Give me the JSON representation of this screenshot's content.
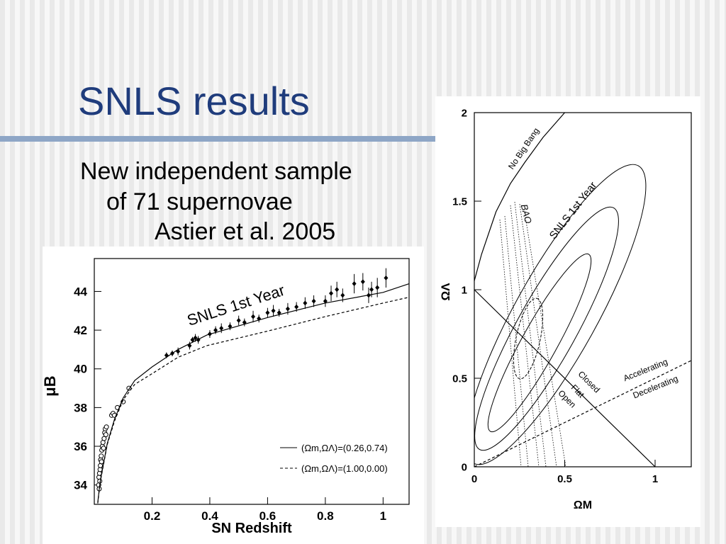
{
  "slide": {
    "title": "SNLS results",
    "body": [
      "New independent sample",
      "of 71 supernovae",
      "Astier et al. 2005"
    ]
  },
  "chart_data": [
    {
      "type": "scatter",
      "x_label": "SN Redshift",
      "y_label": "μB",
      "xlim": [
        0,
        1.09
      ],
      "ylim": [
        33,
        45.7
      ],
      "xticks": [
        0.2,
        0.4,
        0.6,
        0.8,
        1
      ],
      "yticks": [
        34,
        36,
        38,
        40,
        42,
        44
      ],
      "legend": "lower right",
      "annotations": [
        {
          "text": "SNLS 1st Year"
        }
      ],
      "series": [
        {
          "marker": "circle-open",
          "color": "#000000",
          "x": [
            0.015,
            0.016,
            0.017,
            0.018,
            0.019,
            0.02,
            0.021,
            0.022,
            0.024,
            0.025,
            0.026,
            0.028,
            0.03,
            0.032,
            0.034,
            0.036,
            0.038,
            0.04,
            0.042,
            0.06,
            0.065,
            0.07,
            0.08,
            0.1,
            0.12
          ],
          "values": [
            34.0,
            34.4,
            33.8,
            34.6,
            34.2,
            34.8,
            35.0,
            35.3,
            35.5,
            35.2,
            35.8,
            36.0,
            36.2,
            35.9,
            36.4,
            36.7,
            36.9,
            36.6,
            37.0,
            37.6,
            37.7,
            37.6,
            38.0,
            38.3,
            39.0
          ]
        },
        {
          "marker": "diamond",
          "color": "#000000",
          "x": [
            0.25,
            0.27,
            0.29,
            0.33,
            0.34,
            0.35,
            0.36,
            0.4,
            0.42,
            0.44,
            0.47,
            0.5,
            0.52,
            0.55,
            0.57,
            0.6,
            0.62,
            0.64,
            0.67,
            0.7,
            0.73,
            0.76,
            0.8,
            0.82,
            0.84,
            0.86,
            0.9,
            0.93,
            0.95,
            0.96,
            0.98,
            1.01
          ],
          "values": [
            40.7,
            40.8,
            40.9,
            41.2,
            41.5,
            41.6,
            41.5,
            41.8,
            42.0,
            42.1,
            42.2,
            42.5,
            42.4,
            42.7,
            42.6,
            42.9,
            43.0,
            42.9,
            43.1,
            43.2,
            43.4,
            43.5,
            43.5,
            43.9,
            44.1,
            43.8,
            44.4,
            44.5,
            43.8,
            44.1,
            44.2,
            44.7
          ],
          "errors": [
            0.15,
            0.15,
            0.2,
            0.2,
            0.15,
            0.2,
            0.2,
            0.2,
            0.2,
            0.25,
            0.2,
            0.25,
            0.2,
            0.3,
            0.2,
            0.25,
            0.3,
            0.2,
            0.3,
            0.25,
            0.3,
            0.3,
            0.3,
            0.4,
            0.4,
            0.35,
            0.5,
            0.45,
            0.4,
            0.4,
            0.5,
            0.5
          ]
        },
        {
          "type": "line",
          "dash": "solid",
          "color": "#000000",
          "name": "(Ωm,ΩΛ)=(0.26,0.74)",
          "x": [
            0.012,
            0.02,
            0.045,
            0.07,
            0.1,
            0.14,
            0.2,
            0.29,
            0.39,
            0.6,
            0.8,
            1.0,
            1.09
          ],
          "values": [
            33.1,
            34.15,
            36.15,
            37.4,
            38.5,
            39.4,
            40.1,
            41.0,
            41.75,
            42.65,
            43.4,
            43.95,
            44.4
          ]
        },
        {
          "type": "line",
          "dash": "dashed",
          "color": "#000000",
          "name": "(Ωm,ΩΛ)=(1.00,0.00)",
          "x": [
            0.012,
            0.02,
            0.045,
            0.07,
            0.1,
            0.14,
            0.2,
            0.29,
            0.39,
            0.6,
            0.8,
            1.0,
            1.09
          ],
          "values": [
            33.05,
            34.1,
            36.1,
            37.3,
            38.4,
            39.2,
            39.75,
            40.6,
            41.2,
            41.95,
            42.7,
            43.4,
            43.7
          ]
        }
      ]
    },
    {
      "type": "line",
      "x_label": "ΩM",
      "y_label": "ΩΛ",
      "xlim": [
        0,
        1.2
      ],
      "ylim": [
        0,
        2
      ],
      "xticks": [
        0,
        0.5,
        1
      ],
      "yticks": [
        0,
        0.5,
        1,
        1.5,
        2
      ],
      "annotations": [
        {
          "text": "No Big Bang"
        },
        {
          "text": "SNLS 1st Year"
        },
        {
          "text": "BAO"
        },
        {
          "text": "Closed"
        },
        {
          "text": "Flat"
        },
        {
          "text": "Open"
        },
        {
          "text": "Accelerating"
        },
        {
          "text": "Decelerating"
        }
      ],
      "series": [
        {
          "dash": "solid",
          "color": "#000000",
          "x": [
            0,
            0.04,
            0.12,
            0.2,
            0.28,
            0.38,
            0.5
          ],
          "values": [
            1.05,
            1.2,
            1.44,
            1.6,
            1.72,
            1.86,
            2.0
          ]
        },
        {
          "dash": "solid",
          "color": "#000000",
          "x": [
            0,
            1
          ],
          "values": [
            1,
            0
          ]
        },
        {
          "dash": "dashed",
          "color": "#000000",
          "x": [
            0,
            1.2
          ],
          "values": [
            0,
            0.6
          ]
        }
      ]
    }
  ]
}
